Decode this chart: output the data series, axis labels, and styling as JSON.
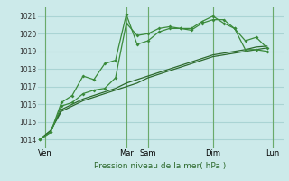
{
  "title": "",
  "xlabel": "Pression niveau de la mer( hPa )",
  "bg_color": "#cceaea",
  "grid_color": "#aad4d4",
  "line_color_dark": "#2d6a2d",
  "line_color_bright": "#3a8a3a",
  "ylim": [
    1013.5,
    1021.5
  ],
  "yticks": [
    1014,
    1015,
    1016,
    1017,
    1018,
    1019,
    1020,
    1021
  ],
  "day_labels": [
    "Ven",
    "",
    "Mar",
    "Sam",
    "",
    "Dim",
    "",
    "Lun"
  ],
  "day_positions": [
    0.5,
    4.0,
    8.0,
    10.0,
    13.5,
    16.0,
    19.0,
    21.5
  ],
  "vline_positions": [
    0.5,
    8.0,
    10.0,
    16.0,
    21.5
  ],
  "xlim": [
    -0.2,
    22.5
  ],
  "series1_x": [
    0,
    1,
    2,
    3,
    4,
    5,
    6,
    7,
    8,
    9,
    10,
    11,
    12,
    13,
    14,
    15,
    16,
    17,
    18,
    19,
    20,
    21
  ],
  "series1_y": [
    1014.0,
    1014.4,
    1015.9,
    1016.1,
    1016.6,
    1016.8,
    1016.9,
    1017.5,
    1020.6,
    1019.9,
    1020.0,
    1020.3,
    1020.4,
    1020.3,
    1020.2,
    1020.6,
    1020.8,
    1020.8,
    1020.3,
    1019.1,
    1019.1,
    1019.0
  ],
  "series2_x": [
    0,
    1,
    2,
    3,
    4,
    5,
    6,
    7,
    8,
    9,
    10,
    11,
    12,
    13,
    14,
    15,
    16,
    17,
    18,
    19,
    20,
    21
  ],
  "series2_y": [
    1014.0,
    1014.4,
    1016.1,
    1016.5,
    1017.6,
    1017.4,
    1018.3,
    1018.5,
    1021.1,
    1019.4,
    1019.6,
    1020.1,
    1020.3,
    1020.3,
    1020.3,
    1020.7,
    1021.0,
    1020.6,
    1020.3,
    1019.6,
    1019.8,
    1019.2
  ],
  "series3_x": [
    0,
    1,
    2,
    3,
    4,
    5,
    6,
    7,
    8,
    9,
    10,
    11,
    12,
    13,
    14,
    15,
    16,
    17,
    18,
    19,
    20,
    21
  ],
  "series3_y": [
    1014.0,
    1014.5,
    1015.6,
    1015.9,
    1016.2,
    1016.4,
    1016.6,
    1016.8,
    1017.0,
    1017.2,
    1017.5,
    1017.7,
    1017.9,
    1018.1,
    1018.3,
    1018.5,
    1018.7,
    1018.8,
    1018.9,
    1019.0,
    1019.1,
    1019.2
  ],
  "series4_x": [
    0,
    1,
    2,
    3,
    4,
    5,
    6,
    7,
    8,
    9,
    10,
    11,
    12,
    13,
    14,
    15,
    16,
    17,
    18,
    19,
    20,
    21
  ],
  "series4_y": [
    1014.0,
    1014.5,
    1015.7,
    1016.0,
    1016.3,
    1016.5,
    1016.7,
    1016.9,
    1017.2,
    1017.4,
    1017.6,
    1017.8,
    1018.0,
    1018.2,
    1018.4,
    1018.6,
    1018.8,
    1018.9,
    1019.0,
    1019.1,
    1019.25,
    1019.3
  ]
}
